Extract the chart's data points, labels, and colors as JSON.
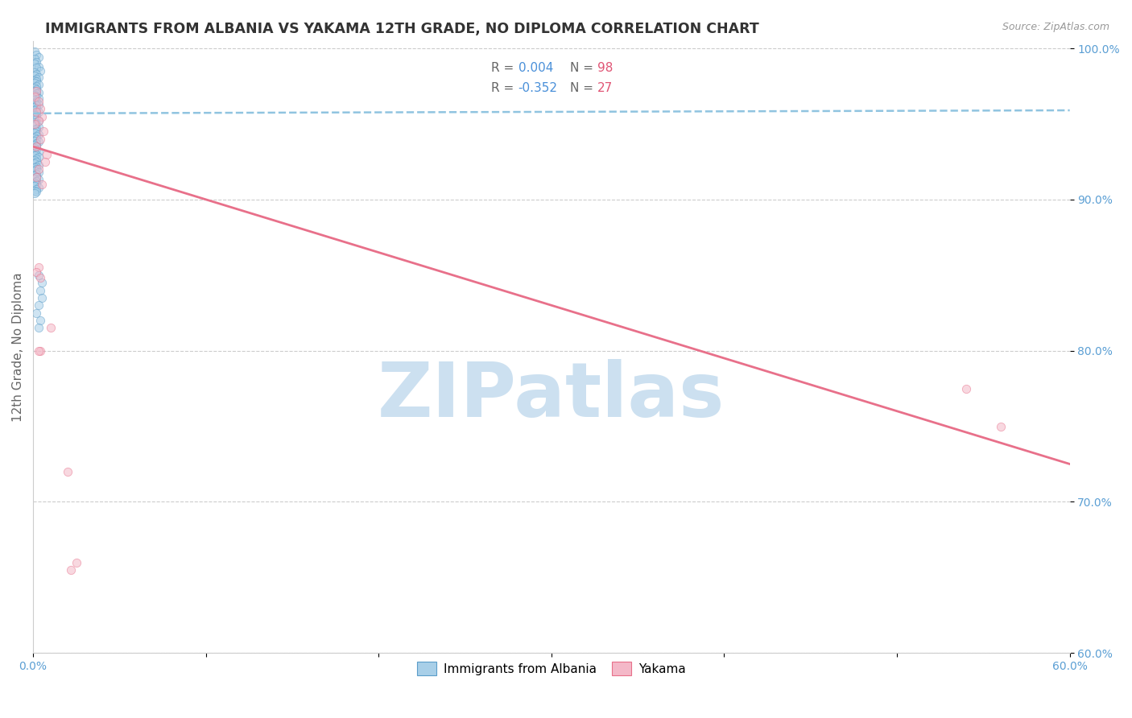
{
  "title": "IMMIGRANTS FROM ALBANIA VS YAKAMA 12TH GRADE, NO DIPLOMA CORRELATION CHART",
  "source": "Source: ZipAtlas.com",
  "ylabel": "12th Grade, No Diploma",
  "legend_label_blue": "Immigrants from Albania",
  "legend_label_pink": "Yakama",
  "watermark": "ZIPatlas",
  "x_min": 0.0,
  "x_max": 0.6,
  "y_min": 0.6,
  "y_max": 1.005,
  "x_ticks": [
    0.0,
    0.1,
    0.2,
    0.3,
    0.4,
    0.5,
    0.6
  ],
  "x_tick_labels": [
    "0.0%",
    "",
    "",
    "",
    "",
    "",
    "60.0%"
  ],
  "y_ticks": [
    0.6,
    0.7,
    0.8,
    0.9,
    1.0
  ],
  "y_tick_labels": [
    "60.0%",
    "70.0%",
    "80.0%",
    "90.0%",
    "100.0%"
  ],
  "blue_color": "#a8cfe8",
  "blue_edge_color": "#5b9dc9",
  "pink_color": "#f4b8c8",
  "pink_edge_color": "#e8708a",
  "dashed_blue_line_color": "#90c4e0",
  "pink_line_color": "#e8708a",
  "watermark_color": "#cce0f0",
  "blue_scatter_x": [
    0.001,
    0.002,
    0.003,
    0.001,
    0.002,
    0.001,
    0.003,
    0.002,
    0.004,
    0.001,
    0.002,
    0.001,
    0.003,
    0.002,
    0.001,
    0.002,
    0.001,
    0.003,
    0.002,
    0.001,
    0.002,
    0.001,
    0.003,
    0.002,
    0.001,
    0.002,
    0.003,
    0.001,
    0.002,
    0.001,
    0.003,
    0.002,
    0.001,
    0.002,
    0.001,
    0.003,
    0.002,
    0.001,
    0.002,
    0.001,
    0.002,
    0.003,
    0.001,
    0.002,
    0.001,
    0.003,
    0.002,
    0.001,
    0.002,
    0.001,
    0.003,
    0.002,
    0.001,
    0.002,
    0.001,
    0.003,
    0.002,
    0.001,
    0.002,
    0.001,
    0.002,
    0.003,
    0.001,
    0.002,
    0.001,
    0.003,
    0.002,
    0.001,
    0.002,
    0.001,
    0.003,
    0.002,
    0.001,
    0.002,
    0.001,
    0.003,
    0.002,
    0.001,
    0.002,
    0.001,
    0.003,
    0.002,
    0.001,
    0.002,
    0.001,
    0.003,
    0.002,
    0.001,
    0.002,
    0.001,
    0.003,
    0.005,
    0.004,
    0.005,
    0.003,
    0.002,
    0.004,
    0.003
  ],
  "blue_scatter_y": [
    0.998,
    0.996,
    0.994,
    0.993,
    0.991,
    0.99,
    0.988,
    0.987,
    0.985,
    0.984,
    0.983,
    0.982,
    0.981,
    0.98,
    0.979,
    0.978,
    0.977,
    0.976,
    0.975,
    0.974,
    0.973,
    0.972,
    0.971,
    0.97,
    0.969,
    0.968,
    0.967,
    0.966,
    0.965,
    0.964,
    0.963,
    0.962,
    0.961,
    0.96,
    0.959,
    0.958,
    0.957,
    0.956,
    0.955,
    0.954,
    0.953,
    0.952,
    0.951,
    0.95,
    0.949,
    0.948,
    0.947,
    0.946,
    0.945,
    0.944,
    0.943,
    0.942,
    0.941,
    0.94,
    0.939,
    0.938,
    0.937,
    0.936,
    0.935,
    0.934,
    0.933,
    0.932,
    0.931,
    0.93,
    0.929,
    0.928,
    0.927,
    0.926,
    0.925,
    0.924,
    0.923,
    0.922,
    0.921,
    0.92,
    0.919,
    0.918,
    0.917,
    0.916,
    0.915,
    0.914,
    0.913,
    0.912,
    0.911,
    0.91,
    0.909,
    0.908,
    0.907,
    0.906,
    0.905,
    0.904,
    0.85,
    0.845,
    0.84,
    0.835,
    0.83,
    0.825,
    0.82,
    0.815
  ],
  "pink_scatter_x": [
    0.002,
    0.001,
    0.003,
    0.004,
    0.002,
    0.005,
    0.003,
    0.001,
    0.006,
    0.004,
    0.002,
    0.008,
    0.007,
    0.01,
    0.003,
    0.002,
    0.004,
    0.003,
    0.002,
    0.005,
    0.004,
    0.003,
    0.025,
    0.022,
    0.54,
    0.56,
    0.02
  ],
  "pink_scatter_y": [
    0.972,
    0.968,
    0.965,
    0.96,
    0.958,
    0.955,
    0.952,
    0.95,
    0.945,
    0.94,
    0.935,
    0.93,
    0.925,
    0.815,
    0.855,
    0.852,
    0.848,
    0.92,
    0.915,
    0.91,
    0.8,
    0.8,
    0.66,
    0.655,
    0.775,
    0.75,
    0.72
  ],
  "blue_trendline_x": [
    0.0,
    0.6
  ],
  "blue_trendline_y": [
    0.957,
    0.959
  ],
  "pink_trendline_x": [
    0.0,
    0.6
  ],
  "pink_trendline_y": [
    0.935,
    0.725
  ],
  "title_fontsize": 12.5,
  "axis_label_fontsize": 11,
  "tick_fontsize": 10,
  "legend_fontsize": 11,
  "scatter_size": 55,
  "scatter_alpha": 0.55,
  "background_color": "#ffffff",
  "grid_color": "#cccccc"
}
